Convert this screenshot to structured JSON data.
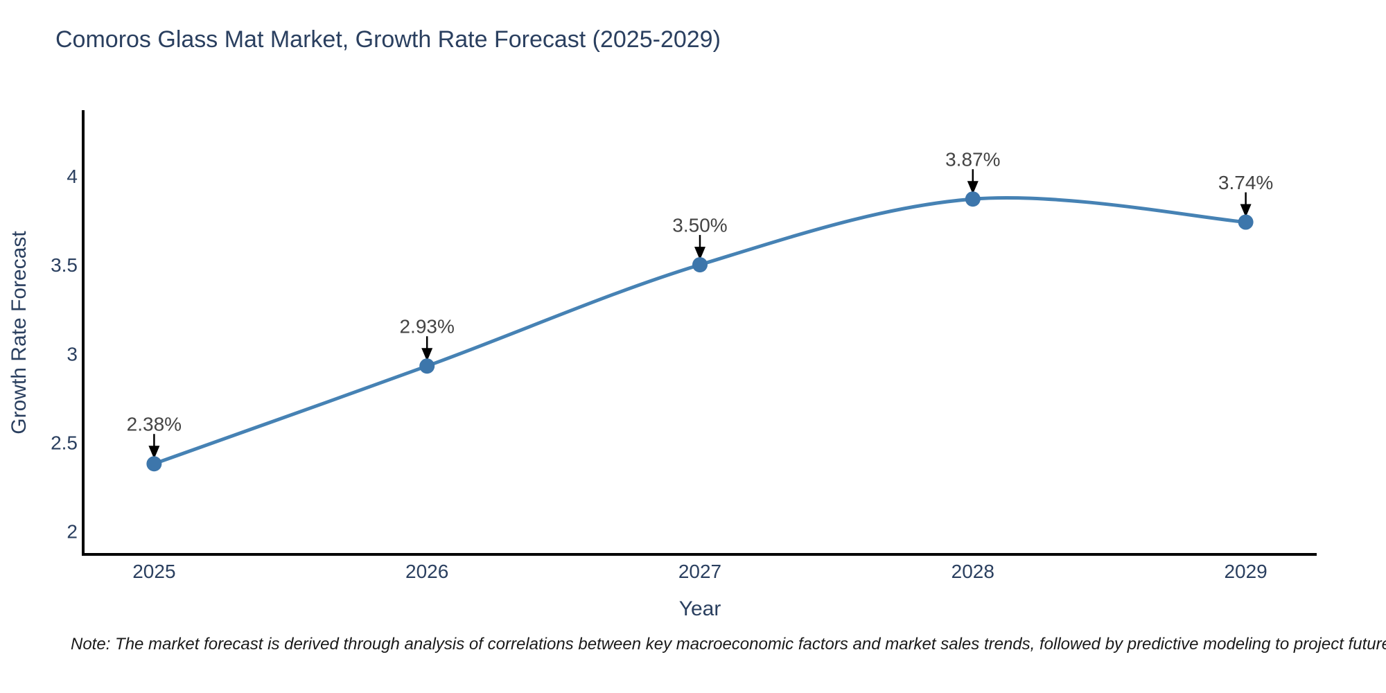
{
  "title": {
    "text": "Comoros Glass Mat Market, Growth Rate Forecast (2025-2029)",
    "color": "#2a3f5f"
  },
  "note": {
    "text": "Note: The market forecast is derived through analysis of correlations between key macroeconomic factors and market sales trends, followed by predictive modeling to project future sales"
  },
  "chart_data": {
    "type": "line",
    "title": "Comoros Glass Mat Market, Growth Rate Forecast (2025-2029)",
    "xlabel": "Year",
    "ylabel": "Growth Rate Forecast",
    "x": [
      2025,
      2026,
      2027,
      2028,
      2029
    ],
    "y": [
      2.38,
      2.93,
      3.5,
      3.87,
      3.74
    ],
    "point_labels": [
      "2.38%",
      "2.93%",
      "3.50%",
      "3.87%",
      "3.74%"
    ],
    "xtick_labels": [
      "2025",
      "2026",
      "2027",
      "2028",
      "2029"
    ],
    "yticks": [
      4,
      3.5,
      3,
      2.5,
      2
    ],
    "ytick_labels": [
      "4",
      "3.5",
      "3",
      "2.5",
      "2"
    ],
    "xlim": [
      2024.74,
      2029.26
    ],
    "ylim": [
      1.87,
      4.37
    ],
    "grid": false,
    "legend": false,
    "line_shape": "spline",
    "colors": {
      "line": "#4682b4",
      "marker": "#3d76ab",
      "axis": "#000000",
      "tick_text": "#2a3f5f",
      "annotation_text": "#444444",
      "arrow": "#000000"
    }
  }
}
